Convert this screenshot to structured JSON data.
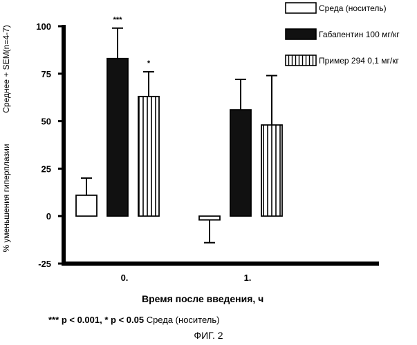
{
  "chart_data": {
    "type": "bar",
    "categories": [
      "0.",
      "1."
    ],
    "ylabel_line1": "Среднее + SEM(n=4-7)",
    "ylabel_line2": "% уменьшения гиперплазии",
    "xlabel": "Время после введения, ч",
    "ylim": [
      -25,
      100
    ],
    "yticks": [
      {
        "value": 100,
        "label": "100"
      },
      {
        "value": 75,
        "label": "75"
      },
      {
        "value": 50,
        "label": "50"
      },
      {
        "value": 25,
        "label": "25"
      },
      {
        "value": 0,
        "label": "0"
      },
      {
        "value": -25,
        "label": "-25"
      }
    ],
    "series": [
      {
        "name": "Среда (носитель)",
        "pattern": "white",
        "values": [
          11,
          -2
        ],
        "errors": [
          9,
          12
        ],
        "significance": [
          "",
          ""
        ]
      },
      {
        "name": "Габапентин 100 мг/кг",
        "pattern": "black",
        "values": [
          83,
          56
        ],
        "errors": [
          16,
          16
        ],
        "significance": [
          "***",
          ""
        ]
      },
      {
        "name": "Пример 294  0,1 мг/кг",
        "pattern": "vstripes",
        "values": [
          63,
          48
        ],
        "errors": [
          13,
          26
        ],
        "significance": [
          "*",
          ""
        ]
      }
    ],
    "colors": {
      "fill_dark": "#111111",
      "stroke": "#000000",
      "background": "#ffffff"
    }
  },
  "footnote": {
    "stars3": "***",
    "p1": "p < 0.001, ",
    "stars1": "*",
    "p2": "p < 0.05",
    "ref": " Среда (носитель)"
  },
  "caption": "ФИГ. 2"
}
